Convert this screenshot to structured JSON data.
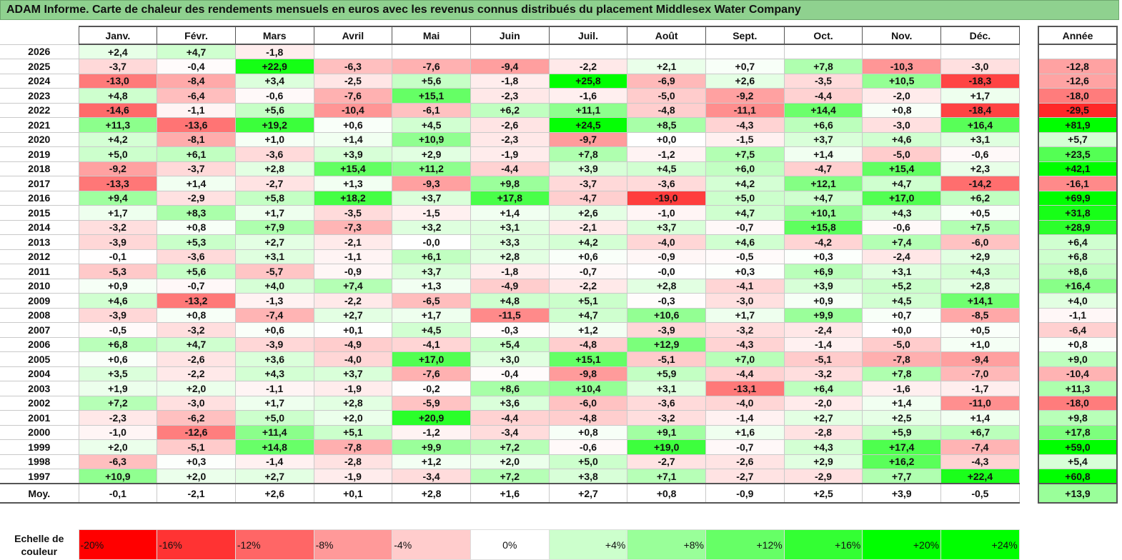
{
  "title": "ADAM Informe. Carte de chaleur des rendements mensuels en euros avec les revenus connus distribués du placement Middlesex Water Company",
  "chart_data": {
    "type": "heatmap",
    "title": "ADAM Informe. Carte de chaleur des rendements mensuels en euros avec les revenus connus distribués du placement Middlesex Water Company",
    "columns": [
      "Janv.",
      "Févr.",
      "Mars",
      "Avril",
      "Mai",
      "Juin",
      "Juil.",
      "Août",
      "Sept.",
      "Oct.",
      "Nov.",
      "Déc."
    ],
    "annual_header": "Année",
    "rows": [
      {
        "year": "2026",
        "values": [
          "+2,4",
          "+4,7",
          "-1,8",
          "",
          "",
          "",
          "",
          "",
          "",
          "",
          "",
          ""
        ],
        "annual": ""
      },
      {
        "year": "2025",
        "values": [
          "-3,7",
          "-0,4",
          "+22,9",
          "-6,3",
          "-7,6",
          "-9,4",
          "-2,2",
          "+2,1",
          "+0,7",
          "+7,8",
          "-10,3",
          "-3,0"
        ],
        "annual": "-12,8"
      },
      {
        "year": "2024",
        "values": [
          "-13,0",
          "-8,4",
          "+3,4",
          "-2,5",
          "+5,6",
          "-1,8",
          "+25,8",
          "-6,9",
          "+2,6",
          "-3,5",
          "+10,5",
          "-18,3"
        ],
        "annual": "-12,6"
      },
      {
        "year": "2023",
        "values": [
          "+4,8",
          "-6,4",
          "-0,6",
          "-7,6",
          "+15,1",
          "-2,3",
          "-1,6",
          "-5,0",
          "-9,2",
          "-4,4",
          "-2,0",
          "+1,7"
        ],
        "annual": "-18,0"
      },
      {
        "year": "2022",
        "values": [
          "-14,6",
          "-1,1",
          "+5,6",
          "-10,4",
          "-6,1",
          "+6,2",
          "+11,1",
          "-4,8",
          "-11,1",
          "+14,4",
          "+0,8",
          "-18,4"
        ],
        "annual": "-29,5"
      },
      {
        "year": "2021",
        "values": [
          "+11,3",
          "-13,6",
          "+19,2",
          "+0,6",
          "+4,5",
          "-2,6",
          "+24,5",
          "+8,5",
          "-4,3",
          "+6,6",
          "-3,0",
          "+16,4"
        ],
        "annual": "+81,9"
      },
      {
        "year": "2020",
        "values": [
          "+4,2",
          "-8,1",
          "+1,0",
          "+1,4",
          "+10,9",
          "-2,3",
          "-9,7",
          "+0,0",
          "-1,5",
          "+3,7",
          "+4,6",
          "+3,1"
        ],
        "annual": "+5,7"
      },
      {
        "year": "2019",
        "values": [
          "+5,0",
          "+6,1",
          "-3,6",
          "+3,9",
          "+2,9",
          "-1,9",
          "+7,8",
          "-1,2",
          "+7,5",
          "+1,4",
          "-5,0",
          "-0,6"
        ],
        "annual": "+23,5"
      },
      {
        "year": "2018",
        "values": [
          "-9,2",
          "-3,7",
          "+2,8",
          "+15,4",
          "+11,2",
          "-4,4",
          "+3,9",
          "+4,5",
          "+6,0",
          "-4,7",
          "+15,4",
          "+2,3"
        ],
        "annual": "+42,1"
      },
      {
        "year": "2017",
        "values": [
          "-13,3",
          "+1,4",
          "-2,7",
          "+1,3",
          "-9,3",
          "+9,8",
          "-3,7",
          "-3,6",
          "+4,2",
          "+12,1",
          "+4,7",
          "-14,2"
        ],
        "annual": "-16,1"
      },
      {
        "year": "2016",
        "values": [
          "+9,4",
          "-2,9",
          "+5,8",
          "+18,2",
          "+3,7",
          "+17,8",
          "-4,7",
          "-19,0",
          "+5,0",
          "+4,7",
          "+17,0",
          "+6,2"
        ],
        "annual": "+69,9"
      },
      {
        "year": "2015",
        "values": [
          "+1,7",
          "+8,3",
          "+1,7",
          "-3,5",
          "-1,5",
          "+1,4",
          "+2,6",
          "-1,0",
          "+4,7",
          "+10,1",
          "+4,3",
          "+0,5"
        ],
        "annual": "+31,8"
      },
      {
        "year": "2014",
        "values": [
          "-3,2",
          "+0,8",
          "+7,9",
          "-7,3",
          "+3,2",
          "+3,1",
          "-2,1",
          "+3,7",
          "-0,7",
          "+15,8",
          "-0,6",
          "+7,5"
        ],
        "annual": "+28,9"
      },
      {
        "year": "2013",
        "values": [
          "-3,9",
          "+5,3",
          "+2,7",
          "-2,1",
          "-0,0",
          "+3,3",
          "+4,2",
          "-4,0",
          "+4,6",
          "-4,2",
          "+7,4",
          "-6,0"
        ],
        "annual": "+6,4"
      },
      {
        "year": "2012",
        "values": [
          "-0,1",
          "-3,6",
          "+3,1",
          "-1,1",
          "+6,1",
          "+2,8",
          "+0,6",
          "-0,9",
          "-0,5",
          "+0,3",
          "-2,4",
          "+2,9"
        ],
        "annual": "+6,8"
      },
      {
        "year": "2011",
        "values": [
          "-5,3",
          "+5,6",
          "-5,7",
          "-0,9",
          "+3,7",
          "-1,8",
          "-0,7",
          "-0,0",
          "+0,3",
          "+6,9",
          "+3,1",
          "+4,3"
        ],
        "annual": "+8,6"
      },
      {
        "year": "2010",
        "values": [
          "+0,9",
          "-0,7",
          "+4,0",
          "+7,4",
          "+1,3",
          "-4,9",
          "-2,2",
          "+2,8",
          "-4,1",
          "+3,9",
          "+5,2",
          "+2,8"
        ],
        "annual": "+16,4"
      },
      {
        "year": "2009",
        "values": [
          "+4,6",
          "-13,2",
          "-1,3",
          "-2,2",
          "-6,5",
          "+4,8",
          "+5,1",
          "-0,3",
          "-3,0",
          "+0,9",
          "+4,5",
          "+14,1"
        ],
        "annual": "+4,0"
      },
      {
        "year": "2008",
        "values": [
          "-3,9",
          "+0,8",
          "-7,4",
          "+2,7",
          "+1,7",
          "-11,5",
          "+4,7",
          "+10,6",
          "+1,7",
          "+9,9",
          "+0,7",
          "-8,5"
        ],
        "annual": "-1,1"
      },
      {
        "year": "2007",
        "values": [
          "-0,5",
          "-3,2",
          "+0,6",
          "+0,1",
          "+4,5",
          "-0,3",
          "+1,2",
          "-3,9",
          "-3,2",
          "-2,4",
          "+0,0",
          "+0,5"
        ],
        "annual": "-6,4"
      },
      {
        "year": "2006",
        "values": [
          "+6,8",
          "+4,7",
          "-3,9",
          "-4,9",
          "-4,1",
          "+5,4",
          "-4,8",
          "+12,9",
          "-4,3",
          "-1,4",
          "-5,0",
          "+1,0"
        ],
        "annual": "+0,8"
      },
      {
        "year": "2005",
        "values": [
          "+0,6",
          "-2,6",
          "+3,6",
          "-4,0",
          "+17,0",
          "+3,0",
          "+15,1",
          "-5,1",
          "+7,0",
          "-5,1",
          "-7,8",
          "-9,4"
        ],
        "annual": "+9,0"
      },
      {
        "year": "2004",
        "values": [
          "+3,5",
          "-2,2",
          "+4,3",
          "+3,7",
          "-7,6",
          "-0,4",
          "-9,8",
          "+5,9",
          "-4,4",
          "-3,2",
          "+7,8",
          "-7,0"
        ],
        "annual": "-10,4"
      },
      {
        "year": "2003",
        "values": [
          "+1,9",
          "+2,0",
          "-1,1",
          "-1,9",
          "-0,2",
          "+8,6",
          "+10,4",
          "+3,1",
          "-13,1",
          "+6,4",
          "-1,6",
          "-1,7"
        ],
        "annual": "+11,3"
      },
      {
        "year": "2002",
        "values": [
          "+7,2",
          "-3,0",
          "+1,7",
          "+2,8",
          "-5,9",
          "+3,6",
          "-6,0",
          "-3,6",
          "-4,0",
          "-2,0",
          "+1,4",
          "-11,0"
        ],
        "annual": "-18,0"
      },
      {
        "year": "2001",
        "values": [
          "-2,3",
          "-6,2",
          "+5,0",
          "+2,0",
          "+20,9",
          "-4,4",
          "-4,8",
          "-3,2",
          "-1,4",
          "+2,7",
          "+2,5",
          "+1,4"
        ],
        "annual": "+9,8"
      },
      {
        "year": "2000",
        "values": [
          "-1,0",
          "-12,6",
          "+11,4",
          "+5,1",
          "-1,2",
          "-3,4",
          "+0,8",
          "+9,1",
          "+1,6",
          "-2,8",
          "+5,9",
          "+6,7"
        ],
        "annual": "+17,8"
      },
      {
        "year": "1999",
        "values": [
          "+2,0",
          "-5,1",
          "+14,8",
          "-7,8",
          "+9,9",
          "+7,2",
          "-0,6",
          "+19,0",
          "-0,7",
          "+4,3",
          "+17,4",
          "-7,4"
        ],
        "annual": "+59,0"
      },
      {
        "year": "1998",
        "values": [
          "-6,3",
          "+0,3",
          "-1,4",
          "-2,8",
          "+1,2",
          "+2,0",
          "+5,0",
          "-2,7",
          "-2,6",
          "+2,9",
          "+16,2",
          "-4,3"
        ],
        "annual": "+5,4"
      },
      {
        "year": "1997",
        "values": [
          "+10,9",
          "+2,0",
          "+2,7",
          "-1,9",
          "-3,4",
          "+7,2",
          "+3,8",
          "+7,1",
          "-2,7",
          "-2,9",
          "+7,7",
          "+22,4"
        ],
        "annual": "+60,8"
      }
    ],
    "average": {
      "label": "Moy.",
      "values": [
        "-0,1",
        "-2,1",
        "+2,6",
        "+0,1",
        "+2,8",
        "+1,6",
        "+2,7",
        "+0,8",
        "-0,9",
        "+2,5",
        "+3,9",
        "-0,5"
      ],
      "annual": "+13,9"
    },
    "color_scale": {
      "label_line1": "Echelle de",
      "label_line2": "couleur",
      "stops": [
        {
          "label": "-20%",
          "value": -20,
          "color": "#ff0000"
        },
        {
          "label": "-16%",
          "value": -16,
          "color": "#ff3333"
        },
        {
          "label": "-12%",
          "value": -12,
          "color": "#ff6666"
        },
        {
          "label": "-8%",
          "value": -8,
          "color": "#ff9999"
        },
        {
          "label": "-4%",
          "value": -4,
          "color": "#ffcccc"
        },
        {
          "label": "0%",
          "value": 0,
          "color": "#ffffff"
        },
        {
          "label": "+4%",
          "value": 4,
          "color": "#ccffcc"
        },
        {
          "label": "+8%",
          "value": 8,
          "color": "#99ff99"
        },
        {
          "label": "+12%",
          "value": 12,
          "color": "#66ff66"
        },
        {
          "label": "+16%",
          "value": 16,
          "color": "#33ff33"
        },
        {
          "label": "+20%",
          "value": 20,
          "color": "#00ff00"
        },
        {
          "label": "+24%",
          "value": 24,
          "color": "#00ff00"
        }
      ]
    }
  }
}
